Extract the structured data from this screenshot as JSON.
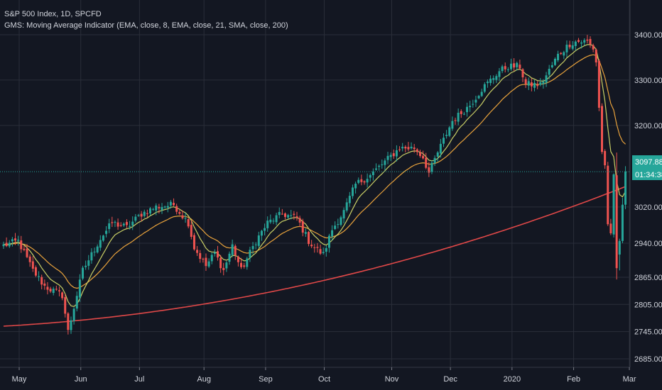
{
  "legend": {
    "title": "S&P 500 Index, 1D, SPCFD",
    "indicator": "GMS: Moving Average Indicator (EMA, close, 8, EMA, close, 21, SMA, close, 200)"
  },
  "price_badge": {
    "price": "3097.88",
    "countdown": "01:34:38"
  },
  "colors": {
    "background": "#131722",
    "grid": "#2a2e39",
    "up": "#26a69a",
    "down": "#ef5350",
    "ema8": "#c9cf66",
    "ema21": "#e8a23c",
    "sma200": "#e04848",
    "price_line": "#26a69a",
    "axis_text": "#d1d4dc"
  },
  "chart_data": {
    "type": "candlestick",
    "title": "S&P 500 Index, 1D, SPCFD",
    "y_ticks": [
      3400,
      3300,
      3200,
      3020,
      2940,
      2865,
      2805,
      2745,
      2685
    ],
    "y_tick_labels": [
      "3400.00",
      "3300.00",
      "3200.00",
      "3020.00",
      "2940.00",
      "2865.00",
      "2805.00",
      "2745.00",
      "2685.00"
    ],
    "x_tick_labels": [
      "May",
      "Jun",
      "Jul",
      "Aug",
      "Sep",
      "Oct",
      "Nov",
      "Dec",
      "2020",
      "Feb",
      "Mar"
    ],
    "x_tick_bar_index": [
      0,
      21,
      41,
      63,
      84,
      104,
      127,
      147,
      168,
      189,
      208
    ],
    "last_price": 3097.88,
    "anchors": [
      [
        0,
        2935
      ],
      [
        5,
        2945
      ],
      [
        10,
        2880
      ],
      [
        14,
        2845
      ],
      [
        20,
        2825
      ],
      [
        22,
        2745
      ],
      [
        27,
        2880
      ],
      [
        33,
        2950
      ],
      [
        37,
        2985
      ],
      [
        42,
        2975
      ],
      [
        47,
        3005
      ],
      [
        52,
        3020
      ],
      [
        58,
        3025
      ],
      [
        63,
        2985
      ],
      [
        65,
        2930
      ],
      [
        69,
        2890
      ],
      [
        72,
        2918
      ],
      [
        75,
        2880
      ],
      [
        78,
        2935
      ],
      [
        81,
        2880
      ],
      [
        86,
        2945
      ],
      [
        90,
        2985
      ],
      [
        95,
        3005
      ],
      [
        100,
        2995
      ],
      [
        104,
        2945
      ],
      [
        106,
        2930
      ],
      [
        109,
        2915
      ],
      [
        112,
        2970
      ],
      [
        116,
        3010
      ],
      [
        120,
        3070
      ],
      [
        125,
        3090
      ],
      [
        130,
        3120
      ],
      [
        135,
        3150
      ],
      [
        140,
        3150
      ],
      [
        143,
        3130
      ],
      [
        145,
        3095
      ],
      [
        148,
        3140
      ],
      [
        153,
        3210
      ],
      [
        159,
        3245
      ],
      [
        163,
        3280
      ],
      [
        166,
        3300
      ],
      [
        169,
        3320
      ],
      [
        172,
        3330
      ],
      [
        176,
        3330
      ],
      [
        178,
        3290
      ],
      [
        183,
        3290
      ],
      [
        185,
        3310
      ],
      [
        189,
        3355
      ],
      [
        193,
        3380
      ],
      [
        195,
        3385
      ],
      [
        199,
        3385
      ],
      [
        201,
        3370
      ],
      [
        202,
        3340
      ],
      [
        203,
        3240
      ],
      [
        204,
        3140
      ],
      [
        205,
        3115
      ],
      [
        206,
        2975
      ],
      [
        207,
        2955
      ],
      [
        208,
        3090
      ]
    ],
    "ohlc_overrides": {
      "209": [
        3090,
        3140,
        2860,
        2885
      ],
      "210": [
        2915,
        2950,
        2880,
        2945
      ],
      "211": [
        2945,
        3040,
        2940,
        3025
      ],
      "212": [
        3025,
        3110,
        3015,
        3097.88
      ]
    },
    "ema8_period": 8,
    "ema21_period": 21,
    "sma200_start": 2757,
    "sma200_end": 3065
  }
}
